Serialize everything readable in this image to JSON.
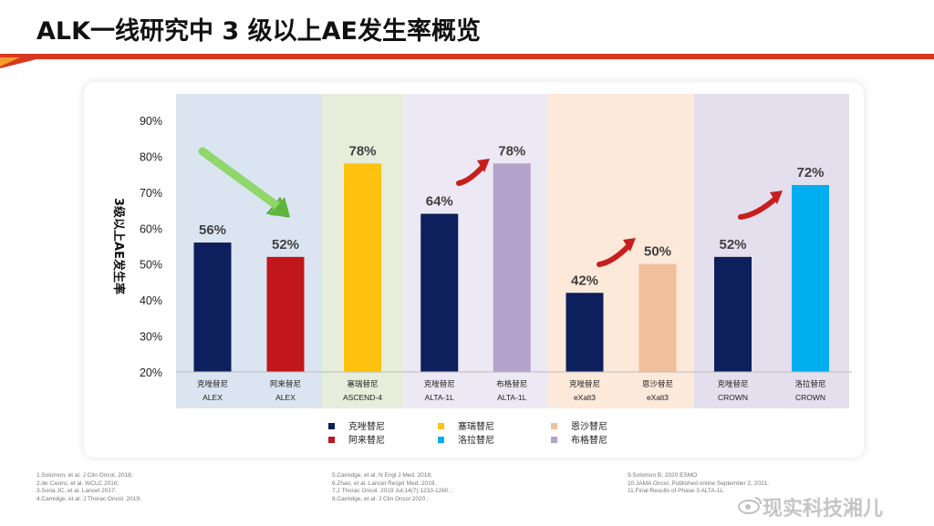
{
  "title": "ALK一线研究中 3 级以上AE发生率概览",
  "colors": {
    "crizotinib": "#0d1f5c",
    "alectinib": "#c0161c",
    "ceritinib": "#ffc20e",
    "brigatinib": "#b3a2c9",
    "ensartinib": "#f2bf9b",
    "lorlatinib": "#00aeef",
    "accent_red": "#c81e1e"
  },
  "chart_data": {
    "type": "bar",
    "ylabel": "3级以上AE发生率",
    "ylim": [
      20,
      90
    ],
    "yticks": [
      "20%",
      "30%",
      "40%",
      "50%",
      "60%",
      "70%",
      "80%",
      "90%"
    ],
    "ytick_values": [
      20,
      30,
      40,
      50,
      60,
      70,
      80,
      90
    ],
    "groups": [
      {
        "study": "ALEX",
        "bg": "#dbe5f1",
        "bars": [
          {
            "drug": "克唑替尼",
            "study_label": "ALEX",
            "value": 56,
            "label": "56%",
            "color": "#0d1f5c"
          },
          {
            "drug": "阿来替尼",
            "study_label": "ALEX",
            "value": 52,
            "label": "52%",
            "color": "#c0161c"
          }
        ]
      },
      {
        "study": "ASCEND-4",
        "bg": "#e6eedb",
        "bars": [
          {
            "drug": "塞瑞替尼",
            "study_label": "ASCEND-4",
            "value": 78,
            "label": "78%",
            "color": "#ffc20e"
          }
        ]
      },
      {
        "study": "ALTA-1L",
        "bg": "#ece9f4",
        "bars": [
          {
            "drug": "克唑替尼",
            "study_label": "ALTA-1L",
            "value": 64,
            "label": "64%",
            "color": "#0d1f5c"
          },
          {
            "drug": "布格替尼",
            "study_label": "ALTA-1L",
            "value": 78,
            "label": "78%",
            "color": "#b3a2c9"
          }
        ]
      },
      {
        "study": "eXalt3",
        "bg": "#fde9d9",
        "bars": [
          {
            "drug": "克唑替尼",
            "study_label": "eXalt3",
            "value": 42,
            "label": "42%",
            "color": "#0d1f5c"
          },
          {
            "drug": "恩沙替尼",
            "study_label": "eXalt3",
            "value": 50,
            "label": "50%",
            "color": "#f2bf9b"
          }
        ]
      },
      {
        "study": "CROWN",
        "bg": "#e4dfec",
        "bars": [
          {
            "drug": "克唑替尼",
            "study_label": "CROWN",
            "value": 52,
            "label": "52%",
            "color": "#0d1f5c"
          },
          {
            "drug": "洛拉替尼",
            "study_label": "CROWN",
            "value": 72,
            "label": "72%",
            "color": "#00aeef"
          }
        ]
      }
    ],
    "legend": [
      {
        "name": "克唑替尼",
        "color": "#0d1f5c"
      },
      {
        "name": "塞瑞替尼",
        "color": "#ffc20e"
      },
      {
        "name": "恩沙替尼",
        "color": "#f2bf9b"
      },
      {
        "name": "阿来替尼",
        "color": "#c0161c"
      },
      {
        "name": "洛拉替尼",
        "color": "#00aeef"
      },
      {
        "name": "布格替尼",
        "color": "#b3a2c9"
      }
    ],
    "legend_placement": "bottom",
    "grid": false,
    "annotations": [
      {
        "type": "arrow-down",
        "color": "green",
        "group": "ALEX"
      },
      {
        "type": "arrow-up",
        "color": "red",
        "group": "ALTA-1L"
      },
      {
        "type": "arrow-up",
        "color": "red",
        "group": "eXalt3"
      },
      {
        "type": "arrow-up",
        "color": "red",
        "group": "CROWN"
      }
    ]
  },
  "references": {
    "col1": [
      "1.Solomon, et al. J Clin Oncol. 2018;",
      "2.de Castro, et al. WCLC 2016;",
      "3.Soria JC, et al. Lancet 2017;",
      "4.Camidge, et al. J Thorac Oncol. 2019;"
    ],
    "col2": [
      "5.Camidge, et al. N Engl J Med. 2018;",
      "6.Zhao, et al. Lancet Respir Med. 2019.",
      "7.J Thorac Oncol. 2019 Jul;14(7):1233-1260. ;",
      "8.Camidge, et al. J Clin Oncol 2020 ;"
    ],
    "col3": [
      "9.Solomon B, 2020 ESMO",
      "10.JAMA Oncol. Published online September 2, 2021.",
      "11.Final Results of Phase 3 ALTA-1L"
    ]
  },
  "watermark": "现实科技湘儿"
}
